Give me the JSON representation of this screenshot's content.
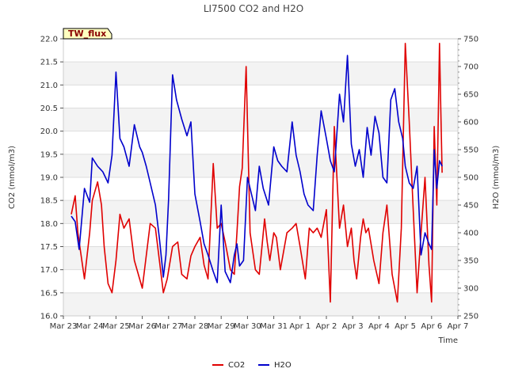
{
  "chart_data": {
    "type": "line",
    "title": "LI7500 CO2 and H2O",
    "xlabel": "Time",
    "ylabel_left": "CO2 (mmol/m3)",
    "ylabel_right": "H2O (mmol/m3)",
    "site_tag": "TW_flux",
    "x_tick_labels": [
      "Mar 23",
      "Mar 24",
      "Mar 25",
      "Mar 26",
      "Mar 27",
      "Mar 28",
      "Mar 29",
      "Mar 30",
      "Mar 31",
      "Apr 1",
      "Apr 2",
      "Apr 3",
      "Apr 4",
      "Apr 5",
      "Apr 6",
      "Apr 7"
    ],
    "xlim_days": [
      0,
      15
    ],
    "ylim_left": [
      16.0,
      22.0
    ],
    "yticks_left": [
      "16.0",
      "16.5",
      "17.0",
      "17.5",
      "18.0",
      "18.5",
      "19.0",
      "19.5",
      "20.0",
      "20.5",
      "21.0",
      "21.5",
      "22.0"
    ],
    "ylim_right": [
      250,
      750
    ],
    "yticks_right": [
      "250",
      "300",
      "350",
      "400",
      "450",
      "500",
      "550",
      "600",
      "650",
      "700",
      "750"
    ],
    "grid": true,
    "legend_position": "bottom-center",
    "series": [
      {
        "name": "CO2",
        "color": "#e00000",
        "axis": "left",
        "x_days": [
          0.3,
          0.45,
          0.55,
          0.8,
          1.0,
          1.1,
          1.3,
          1.45,
          1.55,
          1.7,
          1.85,
          2.0,
          2.15,
          2.3,
          2.5,
          2.7,
          3.0,
          3.15,
          3.3,
          3.5,
          3.65,
          3.8,
          3.95,
          4.15,
          4.35,
          4.5,
          4.7,
          4.85,
          5.0,
          5.2,
          5.35,
          5.5,
          5.7,
          5.85,
          6.0,
          6.15,
          6.35,
          6.5,
          6.6,
          6.7,
          6.8,
          6.95,
          7.1,
          7.3,
          7.45,
          7.55,
          7.65,
          7.75,
          7.85,
          8.0,
          8.1,
          8.25,
          8.5,
          8.7,
          8.85,
          9.0,
          9.2,
          9.35,
          9.5,
          9.65,
          9.8,
          10.0,
          10.15,
          10.3,
          10.5,
          10.65,
          10.8,
          10.95,
          11.05,
          11.15,
          11.3,
          11.4,
          11.5,
          11.6,
          11.8,
          12.0,
          12.15,
          12.3,
          12.5,
          12.7,
          12.85,
          13.0,
          13.15,
          13.3,
          13.45,
          13.6,
          13.75,
          13.9,
          14.0,
          14.1,
          14.2,
          14.3,
          14.35,
          14.4
        ],
        "values": [
          18.2,
          18.6,
          17.8,
          16.8,
          17.8,
          18.5,
          18.9,
          18.4,
          17.5,
          16.7,
          16.5,
          17.2,
          18.2,
          17.9,
          18.1,
          17.2,
          16.6,
          17.3,
          18.0,
          17.9,
          17.2,
          16.5,
          16.8,
          17.5,
          17.6,
          16.9,
          16.8,
          17.3,
          17.5,
          17.7,
          17.1,
          16.8,
          19.3,
          17.9,
          18.0,
          17.6,
          17.0,
          16.9,
          17.8,
          18.8,
          19.2,
          21.4,
          17.8,
          17.0,
          16.9,
          17.5,
          18.1,
          17.6,
          17.2,
          17.8,
          17.7,
          17.0,
          17.8,
          17.9,
          18.0,
          17.5,
          16.8,
          17.9,
          17.8,
          17.9,
          17.7,
          18.3,
          16.3,
          20.1,
          17.9,
          18.4,
          17.5,
          17.9,
          17.2,
          16.8,
          17.7,
          18.1,
          17.8,
          17.9,
          17.2,
          16.7,
          17.8,
          18.4,
          16.9,
          16.3,
          17.9,
          21.9,
          20.2,
          18.3,
          16.5,
          17.8,
          19.0,
          17.1,
          16.3,
          20.1,
          18.4,
          21.9,
          20.5,
          19.1
        ]
      },
      {
        "name": "H2O",
        "color": "#0000cc",
        "axis": "right",
        "x_days": [
          0.3,
          0.45,
          0.6,
          0.8,
          1.0,
          1.1,
          1.3,
          1.5,
          1.7,
          1.85,
          2.0,
          2.15,
          2.3,
          2.5,
          2.7,
          2.9,
          3.0,
          3.15,
          3.3,
          3.5,
          3.65,
          3.8,
          3.9,
          4.0,
          4.15,
          4.3,
          4.5,
          4.7,
          4.85,
          5.0,
          5.2,
          5.35,
          5.5,
          5.7,
          5.85,
          6.0,
          6.15,
          6.35,
          6.5,
          6.6,
          6.7,
          6.85,
          7.0,
          7.15,
          7.3,
          7.45,
          7.6,
          7.8,
          8.0,
          8.15,
          8.3,
          8.5,
          8.7,
          8.85,
          9.0,
          9.15,
          9.3,
          9.5,
          9.65,
          9.8,
          10.0,
          10.15,
          10.3,
          10.5,
          10.65,
          10.8,
          10.95,
          11.1,
          11.25,
          11.4,
          11.55,
          11.7,
          11.85,
          12.0,
          12.15,
          12.3,
          12.45,
          12.6,
          12.75,
          12.9,
          13.0,
          13.15,
          13.3,
          13.45,
          13.6,
          13.75,
          13.9,
          14.0,
          14.1,
          14.2,
          14.3,
          14.4
        ],
        "values": [
          430,
          420,
          370,
          480,
          455,
          535,
          520,
          510,
          490,
          540,
          690,
          570,
          555,
          520,
          595,
          555,
          545,
          520,
          490,
          450,
          390,
          320,
          360,
          460,
          685,
          640,
          605,
          575,
          600,
          470,
          420,
          380,
          360,
          330,
          310,
          450,
          330,
          310,
          360,
          380,
          340,
          350,
          500,
          470,
          440,
          520,
          480,
          450,
          555,
          530,
          520,
          510,
          600,
          540,
          510,
          470,
          450,
          440,
          540,
          620,
          570,
          530,
          510,
          650,
          600,
          720,
          560,
          520,
          550,
          500,
          590,
          540,
          610,
          580,
          500,
          490,
          640,
          660,
          600,
          570,
          520,
          490,
          480,
          520,
          360,
          400,
          380,
          370,
          550,
          480,
          530,
          520
        ]
      }
    ]
  }
}
